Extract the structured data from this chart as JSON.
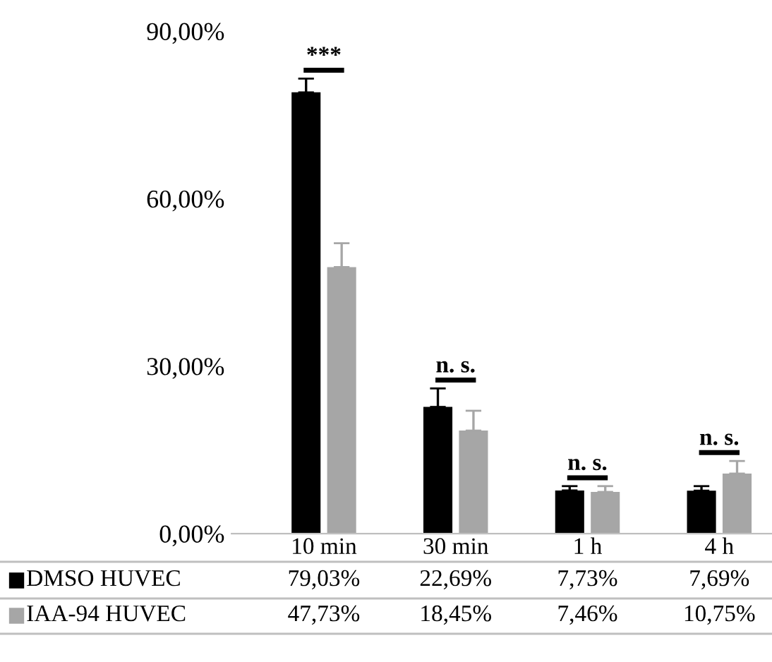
{
  "chart_data": {
    "type": "bar",
    "categories": [
      "10 min",
      "30 min",
      "1 h",
      "4 h"
    ],
    "series": [
      {
        "name": "DMSO HUVEC",
        "color": "#000000",
        "values": [
          79.03,
          22.69,
          7.73,
          7.69
        ],
        "value_labels": [
          "79,03%",
          "22,69%",
          "7,73%",
          "7,69%"
        ],
        "errors": [
          [
            79.03,
            81.5
          ],
          [
            22.69,
            26
          ],
          [
            7.73,
            8.5
          ],
          [
            7.69,
            8.5
          ]
        ]
      },
      {
        "name": "IAA-94 HUVEC",
        "color": "#a6a6a6",
        "values": [
          47.73,
          18.45,
          7.46,
          10.75
        ],
        "value_labels": [
          "47,73%",
          "18,45%",
          "7,46%",
          "10,75%"
        ],
        "errors": [
          [
            47.73,
            52
          ],
          [
            18.45,
            22
          ],
          [
            7.46,
            8.5
          ],
          [
            10.75,
            13
          ]
        ]
      }
    ],
    "ylim": [
      0,
      90
    ],
    "yticks": [
      {
        "value": 0,
        "label": "0,00%"
      },
      {
        "value": 30,
        "label": "30,00%"
      },
      {
        "value": 60,
        "label": "60,00%"
      },
      {
        "value": 90,
        "label": "90,00%"
      }
    ],
    "annotations": [
      "***",
      "n. s.",
      "n. s.",
      "n. s."
    ],
    "grid": false,
    "legend": "bottom"
  }
}
